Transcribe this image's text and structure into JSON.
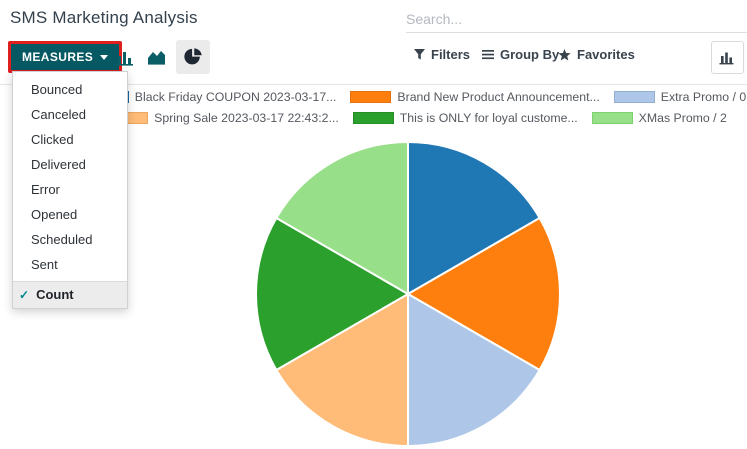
{
  "page": {
    "title": "SMS Marketing Analysis"
  },
  "search": {
    "placeholder": "Search..."
  },
  "toolbar": {
    "measures_label": "MEASURES",
    "filters_label": "Filters",
    "group_by_label": "Group By",
    "favorites_label": "Favorites"
  },
  "icons": {
    "caret_down": "caret-down-icon",
    "bar_chart": "bar-chart-icon",
    "area_chart": "area-chart-icon",
    "pie_chart": "pie-chart-icon",
    "filter": "funnel-icon",
    "group_by": "bars-icon",
    "favorites": "star-icon",
    "view_switch": "bar-chart-icon",
    "check": "✓",
    "star_glyph": "★"
  },
  "measures_menu": {
    "items": [
      "Bounced",
      "Canceled",
      "Clicked",
      "Delivered",
      "Error",
      "Opened",
      "Scheduled",
      "Sent"
    ],
    "selected_item": "Count"
  },
  "colors": {
    "accent_teal": "#065963",
    "highlight_red": "#e01f1f",
    "icon_teal": "#0c5e66",
    "check_teal": "#018790",
    "selected_menu_bg": "#ececec",
    "pie_icon_dark": "#1f2733",
    "toolbar_text": "#39434e"
  },
  "chart_data": {
    "type": "pie",
    "measure": "Count",
    "categories": [
      "Black Friday COUPON 2023-03-17...",
      "Brand New Product Announcement...",
      "Extra Promo / 0",
      "Spring Sale 2023-03-17 22:43:2...",
      "This is ONLY for loyal custome...",
      "XMas Promo / 2"
    ],
    "values": [
      1,
      1,
      1,
      1,
      1,
      1
    ],
    "colors": [
      "#1f77b4",
      "#ff7f0e",
      "#aec7e8",
      "#ffbb78",
      "#2ca02c",
      "#98df8a"
    ],
    "swatch_border_colors": [
      "#1a6aa2",
      "#e5720c",
      "#93aed0",
      "#efa75f",
      "#268e26",
      "#7fd06f"
    ],
    "slice_border_color": "#ffffff",
    "legend_position": "top",
    "title": ""
  }
}
